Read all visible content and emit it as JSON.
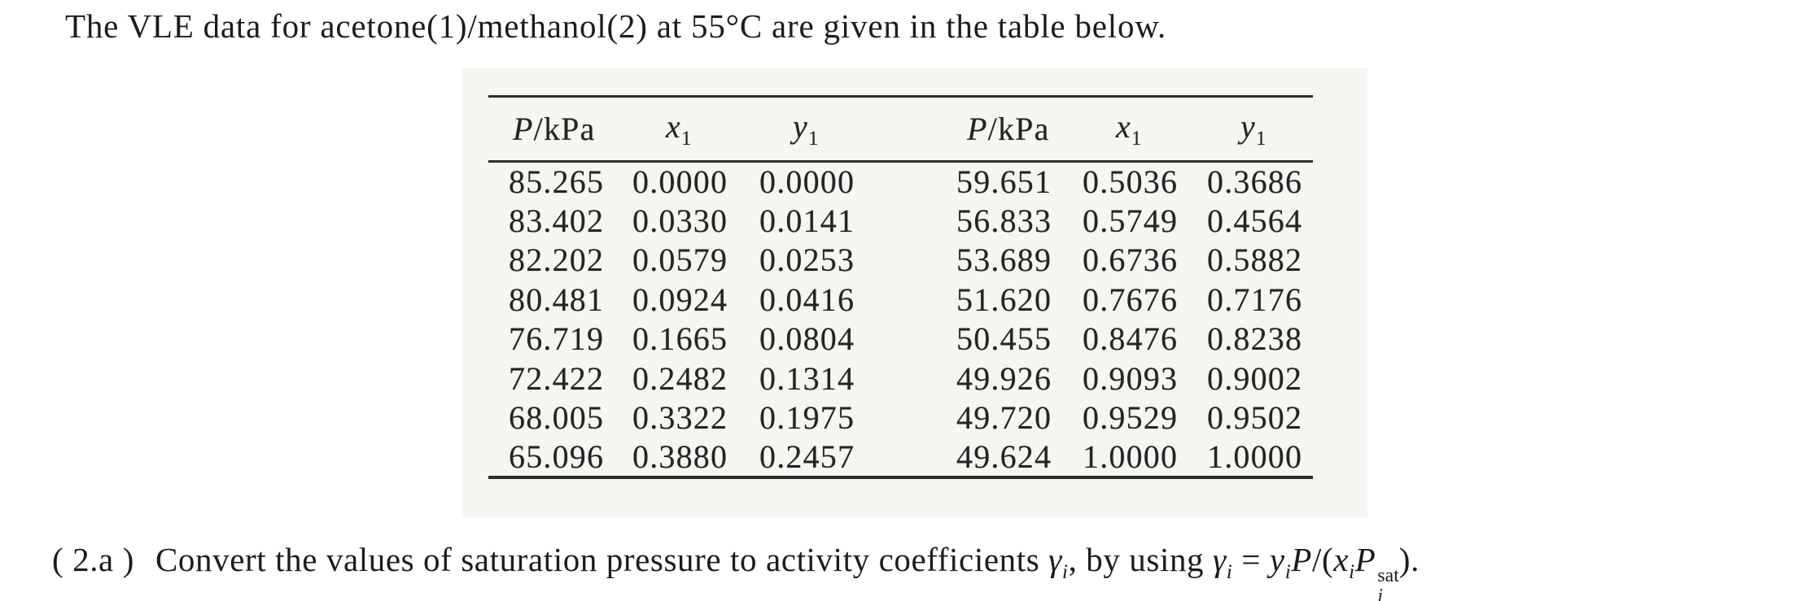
{
  "colors": {
    "page_bg": "#ffffff",
    "scan_bg": "#f6f5f2",
    "text": "#1c1c1c",
    "table_text": "#242424",
    "rule": "#2e2e2e"
  },
  "title": "The VLE data for acetone(1)/methanol(2) at 55°C are given in the table below.",
  "table": {
    "headers": {
      "p_symbol": "P",
      "p_unit": "/kPa",
      "x_symbol": "x",
      "y_symbol": "y",
      "subscript": "1"
    },
    "rows": [
      {
        "p_left": "85.265",
        "x1_left": "0.0000",
        "y1_left": "0.0000",
        "p_right": "59.651",
        "x1_right": "0.5036",
        "y1_right": "0.3686"
      },
      {
        "p_left": "83.402",
        "x1_left": "0.0330",
        "y1_left": "0.0141",
        "p_right": "56.833",
        "x1_right": "0.5749",
        "y1_right": "0.4564"
      },
      {
        "p_left": "82.202",
        "x1_left": "0.0579",
        "y1_left": "0.0253",
        "p_right": "53.689",
        "x1_right": "0.6736",
        "y1_right": "0.5882"
      },
      {
        "p_left": "80.481",
        "x1_left": "0.0924",
        "y1_left": "0.0416",
        "p_right": "51.620",
        "x1_right": "0.7676",
        "y1_right": "0.7176"
      },
      {
        "p_left": "76.719",
        "x1_left": "0.1665",
        "y1_left": "0.0804",
        "p_right": "50.455",
        "x1_right": "0.8476",
        "y1_right": "0.8238"
      },
      {
        "p_left": "72.422",
        "x1_left": "0.2482",
        "y1_left": "0.1314",
        "p_right": "49.926",
        "x1_right": "0.9093",
        "y1_right": "0.9002"
      },
      {
        "p_left": "68.005",
        "x1_left": "0.3322",
        "y1_left": "0.1975",
        "p_right": "49.720",
        "x1_right": "0.9529",
        "y1_right": "0.9502"
      },
      {
        "p_left": "65.096",
        "x1_left": "0.3880",
        "y1_left": "0.2457",
        "p_right": "49.624",
        "x1_right": "1.0000",
        "y1_right": "1.0000"
      }
    ]
  },
  "question": {
    "label": "( 2.a )",
    "text_intro": "Convert the values of saturation pressure to activity coefficients ",
    "gamma_symbol": "γ",
    "i_subscript": "i",
    "text_using": ", by using ",
    "equals_sign": " = ",
    "y_symbol": "y",
    "p_symbol": "P",
    "x_symbol": "x",
    "slash_open_paren": "/(",
    "sat_superscript": "sat",
    "close_paren_period": ")."
  }
}
